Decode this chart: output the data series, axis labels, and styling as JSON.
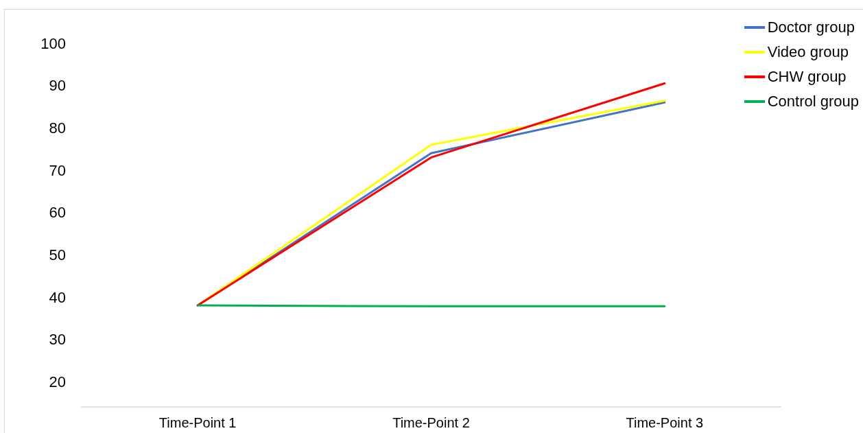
{
  "chart_data": {
    "type": "line",
    "categories": [
      "Time-Point 1",
      "Time-Point 2",
      "Time-Point 3"
    ],
    "series": [
      {
        "name": "Doctor group",
        "color": "#4472c4",
        "values": [
          38,
          74,
          86
        ]
      },
      {
        "name": "Video group",
        "color": "#ffff00",
        "values": [
          38,
          76,
          86.4
        ]
      },
      {
        "name": "CHW group",
        "color": "#ff0000",
        "values": [
          38,
          73,
          90.5
        ]
      },
      {
        "name": "Control group",
        "color": "#00b050",
        "values": [
          38,
          37.8,
          37.8
        ]
      }
    ],
    "ylim": [
      14,
      100
    ],
    "yticks": [
      20,
      30,
      40,
      50,
      60,
      70,
      80,
      90,
      100
    ],
    "legend": "top right"
  }
}
